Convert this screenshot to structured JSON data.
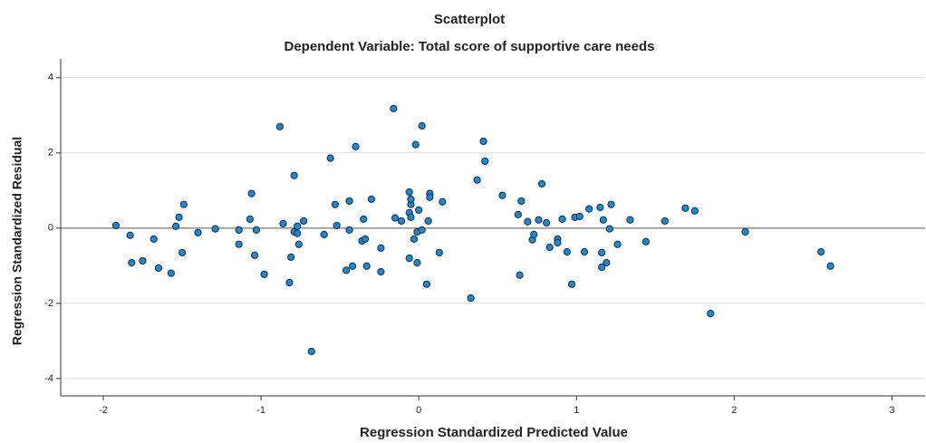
{
  "chart_data": {
    "type": "scatter",
    "title": "Scatterplot",
    "subtitle": "Dependent Variable: Total score of supportive care needs",
    "x_label": "Regression Standardized Predicted Value",
    "y_label": "Regression Standardized Residual",
    "color": "#1a8ad4",
    "grid": true,
    "xlim": [
      -2.27,
      3.21
    ],
    "ylim": [
      -4.46,
      4.5
    ],
    "xticks": [
      -2,
      -1,
      0,
      1,
      2,
      3
    ],
    "yticks": [
      -4,
      -2,
      0,
      2,
      4
    ],
    "x": [
      -1.92,
      -1.83,
      -1.82,
      -1.75,
      -1.68,
      -1.65,
      -1.57,
      -1.54,
      -1.52,
      -1.49,
      -1.5,
      -1.4,
      -1.29,
      -1.14,
      -1.14,
      -1.07,
      -1.06,
      -1.04,
      -1.03,
      -0.98,
      -0.88,
      -0.86,
      -0.82,
      -0.81,
      -0.79,
      -0.79,
      -0.77,
      -0.77,
      -0.76,
      -0.73,
      -0.68,
      -0.6,
      -0.56,
      -0.53,
      -0.52,
      -0.46,
      -0.44,
      -0.44,
      -0.42,
      -0.4,
      -0.36,
      -0.35,
      -0.34,
      -0.33,
      -0.3,
      -0.24,
      -0.24,
      -0.16,
      -0.15,
      -0.11,
      -0.06,
      -0.06,
      -0.06,
      -0.05,
      -0.05,
      -0.05,
      -0.03,
      -0.02,
      -0.01,
      -0.01,
      0.0,
      0.02,
      0.02,
      0.05,
      0.06,
      0.07,
      0.07,
      0.13,
      0.15,
      0.33,
      0.37,
      0.41,
      0.42,
      0.53,
      0.63,
      0.64,
      0.65,
      0.69,
      0.72,
      0.73,
      0.76,
      0.78,
      0.81,
      0.83,
      0.88,
      0.88,
      0.91,
      0.94,
      0.97,
      0.99,
      1.02,
      1.05,
      1.08,
      1.15,
      1.16,
      1.16,
      1.17,
      1.19,
      1.21,
      1.22,
      1.26,
      1.34,
      1.44,
      1.56,
      1.69,
      1.75,
      1.85,
      2.07,
      2.55,
      2.61
    ],
    "values": [
      0.07,
      -0.19,
      -0.92,
      -0.87,
      -0.29,
      -1.06,
      -1.2,
      0.05,
      0.29,
      0.63,
      -0.65,
      -0.12,
      -0.02,
      -0.43,
      -0.05,
      0.24,
      0.92,
      -0.72,
      -0.05,
      -1.23,
      2.7,
      0.12,
      -1.45,
      -0.77,
      1.4,
      -0.1,
      0.05,
      -0.14,
      -0.43,
      0.19,
      -3.28,
      -0.17,
      1.86,
      0.63,
      0.07,
      -1.12,
      -0.05,
      0.72,
      -1.01,
      2.17,
      -0.34,
      0.24,
      -0.29,
      -1.01,
      0.77,
      -0.53,
      -1.16,
      3.18,
      0.27,
      0.19,
      -0.8,
      0.96,
      0.41,
      0.63,
      0.77,
      0.29,
      -0.29,
      2.22,
      -0.1,
      -0.92,
      0.48,
      2.72,
      -0.05,
      -1.49,
      0.19,
      0.92,
      0.82,
      -0.65,
      0.7,
      -1.86,
      1.28,
      2.31,
      1.78,
      0.87,
      0.36,
      -1.25,
      0.72,
      0.17,
      -0.31,
      -0.17,
      0.22,
      1.18,
      0.14,
      -0.51,
      -0.29,
      -0.39,
      0.24,
      -0.63,
      -1.49,
      0.29,
      0.31,
      -0.63,
      0.51,
      0.55,
      -0.65,
      -1.04,
      0.22,
      -0.92,
      -0.02,
      0.63,
      -0.43,
      0.22,
      -0.36,
      0.19,
      0.53,
      0.46,
      -2.27,
      -0.1,
      -0.63,
      -1.01
    ]
  }
}
